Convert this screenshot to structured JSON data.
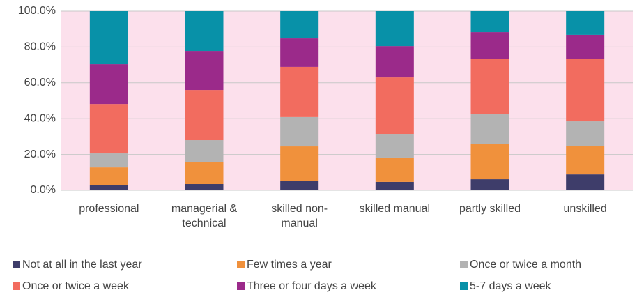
{
  "chart_data": {
    "type": "stacked_bar",
    "categories": [
      "professional",
      "managerial & technical",
      "skilled non-manual",
      "skilled manual",
      "partly skilled",
      "unskilled"
    ],
    "series": [
      {
        "name": "Not at all in the last year",
        "color": "#3e3d6a",
        "values": [
          3.1,
          3.5,
          5.1,
          4.7,
          6.2,
          8.9
        ]
      },
      {
        "name": "Few times a year",
        "color": "#f0913c",
        "values": [
          9.7,
          12.1,
          19.4,
          13.6,
          19.5,
          16.0
        ]
      },
      {
        "name": "Once or twice a month",
        "color": "#b3b3b3",
        "values": [
          7.8,
          12.4,
          16.4,
          13.2,
          16.7,
          13.6
        ]
      },
      {
        "name": "Once or twice a week",
        "color": "#f26c5f",
        "values": [
          27.6,
          28.0,
          28.0,
          31.5,
          31.1,
          35.0
        ]
      },
      {
        "name": "Three or four days a week",
        "color": "#9b2a8a",
        "values": [
          22.2,
          21.8,
          15.9,
          17.5,
          14.8,
          13.3
        ]
      },
      {
        "name": "5-7 days a week",
        "color": "#0891a8",
        "values": [
          29.6,
          22.2,
          15.2,
          19.5,
          11.7,
          13.2
        ]
      }
    ],
    "ylim": [
      0,
      100
    ],
    "yticks": [
      {
        "value": 0,
        "label": "0.0%"
      },
      {
        "value": 20,
        "label": "20.0%"
      },
      {
        "value": 40,
        "label": "40.0%"
      },
      {
        "value": 60,
        "label": "60.0%"
      },
      {
        "value": 80,
        "label": "80.0%"
      },
      {
        "value": 100,
        "label": "100.0%"
      }
    ],
    "grid": true,
    "legend": "bottom"
  }
}
